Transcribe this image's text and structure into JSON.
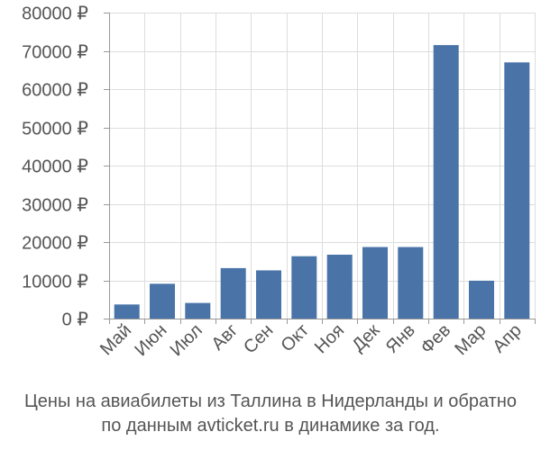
{
  "chart_data": {
    "type": "bar",
    "categories": [
      "Май",
      "Июн",
      "Июл",
      "Авг",
      "Сен",
      "Окт",
      "Ноя",
      "Дек",
      "Янв",
      "Фев",
      "Мар",
      "Апр"
    ],
    "values": [
      3700,
      9100,
      4100,
      13200,
      12600,
      16300,
      16700,
      18700,
      18700,
      71500,
      9900,
      67000
    ],
    "ylim": [
      0,
      80000
    ],
    "yticks": [
      0,
      10000,
      20000,
      30000,
      40000,
      50000,
      60000,
      70000,
      80000
    ],
    "ytick_labels": [
      "0 ₽",
      "10000 ₽",
      "20000 ₽",
      "30000 ₽",
      "40000 ₽",
      "50000 ₽",
      "60000 ₽",
      "70000 ₽",
      "80000 ₽"
    ],
    "bar_color": "#4a74a8",
    "grid": true,
    "grid_color": "#dddddd",
    "axis_color": "#999999",
    "label_color": "#555555"
  },
  "caption": {
    "line1": "Цены на авиабилеты из Таллина в Нидерланды и обратно",
    "line2": "по данным avticket.ru в динамике за год."
  }
}
